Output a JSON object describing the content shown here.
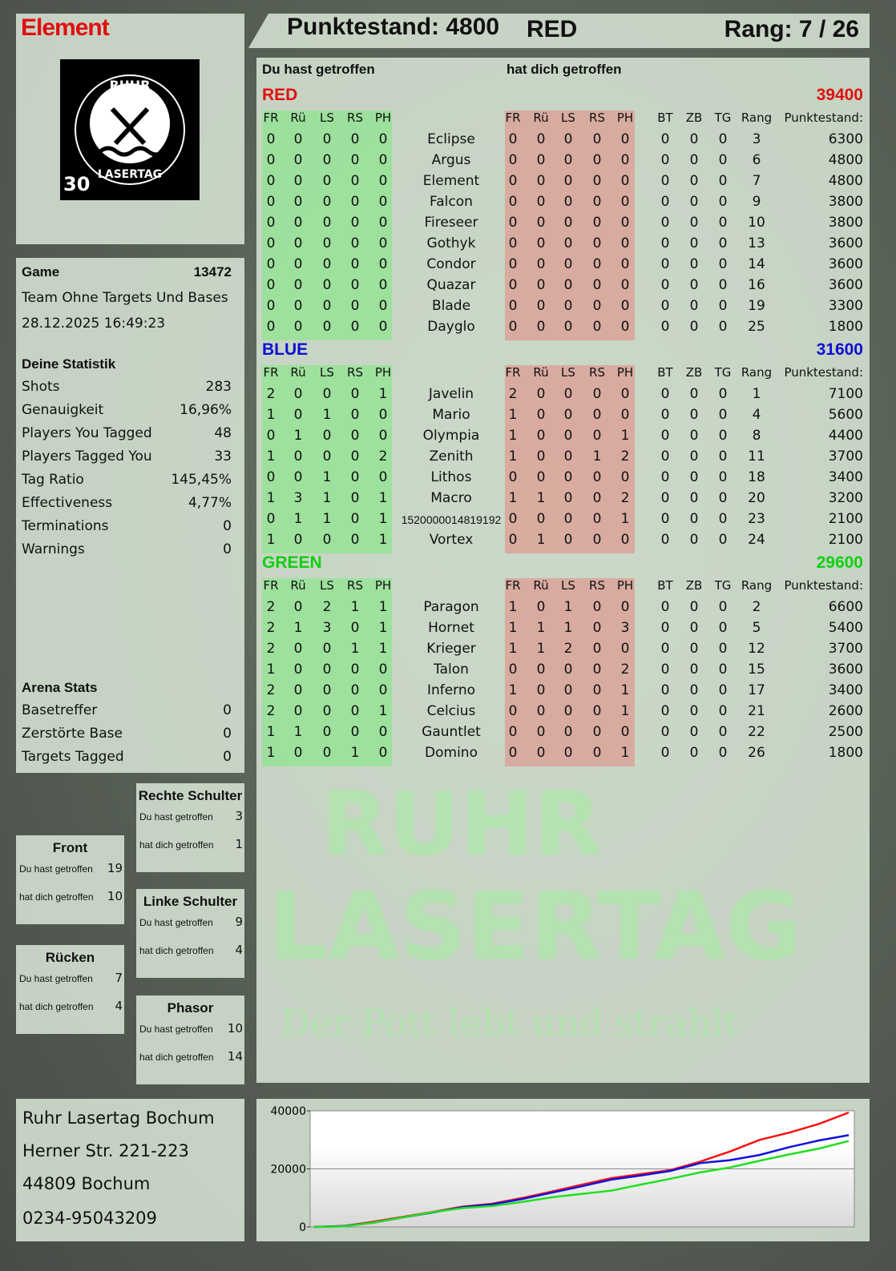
{
  "player": {
    "name": "Element",
    "score_label": "Punktestand: 4800",
    "team": "RED",
    "rank_label": "Rang: 7 / 26"
  },
  "logo": {
    "text_top": "RUHR",
    "text_bottom": "LASERTAG",
    "badge": "30"
  },
  "table": {
    "hit_label": "Du hast getroffen",
    "hit_by_label": "hat dich getroffen",
    "cols_hit": [
      "FR",
      "Rü",
      "LS",
      "RS",
      "PH"
    ],
    "cols_by": [
      "FR",
      "Rü",
      "LS",
      "RS",
      "PH"
    ],
    "cols_extra": [
      "BT",
      "ZB",
      "TG",
      "Rang",
      "Punktestand:"
    ],
    "teams": [
      {
        "name": "RED",
        "total": "39400",
        "color": "#e01010",
        "rows": [
          [
            "0",
            "0",
            "0",
            "0",
            "0",
            "Eclipse",
            "0",
            "0",
            "0",
            "0",
            "0",
            "0",
            "0",
            "0",
            "3",
            "6300"
          ],
          [
            "0",
            "0",
            "0",
            "0",
            "0",
            "Argus",
            "0",
            "0",
            "0",
            "0",
            "0",
            "0",
            "0",
            "0",
            "6",
            "4800"
          ],
          [
            "0",
            "0",
            "0",
            "0",
            "0",
            "Element",
            "0",
            "0",
            "0",
            "0",
            "0",
            "0",
            "0",
            "0",
            "7",
            "4800"
          ],
          [
            "0",
            "0",
            "0",
            "0",
            "0",
            "Falcon",
            "0",
            "0",
            "0",
            "0",
            "0",
            "0",
            "0",
            "0",
            "9",
            "3800"
          ],
          [
            "0",
            "0",
            "0",
            "0",
            "0",
            "Fireseer",
            "0",
            "0",
            "0",
            "0",
            "0",
            "0",
            "0",
            "0",
            "10",
            "3800"
          ],
          [
            "0",
            "0",
            "0",
            "0",
            "0",
            "Gothyk",
            "0",
            "0",
            "0",
            "0",
            "0",
            "0",
            "0",
            "0",
            "13",
            "3600"
          ],
          [
            "0",
            "0",
            "0",
            "0",
            "0",
            "Condor",
            "0",
            "0",
            "0",
            "0",
            "0",
            "0",
            "0",
            "0",
            "14",
            "3600"
          ],
          [
            "0",
            "0",
            "0",
            "0",
            "0",
            "Quazar",
            "0",
            "0",
            "0",
            "0",
            "0",
            "0",
            "0",
            "0",
            "16",
            "3600"
          ],
          [
            "0",
            "0",
            "0",
            "0",
            "0",
            "Blade",
            "0",
            "0",
            "0",
            "0",
            "0",
            "0",
            "0",
            "0",
            "19",
            "3300"
          ],
          [
            "0",
            "0",
            "0",
            "0",
            "0",
            "Dayglo",
            "0",
            "0",
            "0",
            "0",
            "0",
            "0",
            "0",
            "0",
            "25",
            "1800"
          ]
        ]
      },
      {
        "name": "BLUE",
        "total": "31600",
        "color": "#1010d0",
        "rows": [
          [
            "2",
            "0",
            "0",
            "0",
            "1",
            "Javelin",
            "2",
            "0",
            "0",
            "0",
            "0",
            "0",
            "0",
            "0",
            "1",
            "7100"
          ],
          [
            "1",
            "0",
            "1",
            "0",
            "0",
            "Mario",
            "1",
            "0",
            "0",
            "0",
            "0",
            "0",
            "0",
            "0",
            "4",
            "5600"
          ],
          [
            "0",
            "1",
            "0",
            "0",
            "0",
            "Olympia",
            "1",
            "0",
            "0",
            "0",
            "1",
            "0",
            "0",
            "0",
            "8",
            "4400"
          ],
          [
            "1",
            "0",
            "0",
            "0",
            "2",
            "Zenith",
            "1",
            "0",
            "0",
            "1",
            "2",
            "0",
            "0",
            "0",
            "11",
            "3700"
          ],
          [
            "0",
            "0",
            "1",
            "0",
            "0",
            "Lithos",
            "0",
            "0",
            "0",
            "0",
            "0",
            "0",
            "0",
            "0",
            "18",
            "3400"
          ],
          [
            "1",
            "3",
            "1",
            "0",
            "1",
            "Macro",
            "1",
            "1",
            "0",
            "0",
            "2",
            "0",
            "0",
            "0",
            "20",
            "3200"
          ],
          [
            "0",
            "1",
            "1",
            "0",
            "1",
            "1520000014819192",
            "0",
            "0",
            "0",
            "0",
            "1",
            "0",
            "0",
            "0",
            "23",
            "2100"
          ],
          [
            "1",
            "0",
            "0",
            "0",
            "1",
            "Vortex",
            "0",
            "1",
            "0",
            "0",
            "0",
            "0",
            "0",
            "0",
            "24",
            "2100"
          ]
        ]
      },
      {
        "name": "GREEN",
        "total": "29600",
        "color": "#10d010",
        "rows": [
          [
            "2",
            "0",
            "2",
            "1",
            "1",
            "Paragon",
            "1",
            "0",
            "1",
            "0",
            "0",
            "0",
            "0",
            "0",
            "2",
            "6600"
          ],
          [
            "2",
            "1",
            "3",
            "0",
            "1",
            "Hornet",
            "1",
            "1",
            "1",
            "0",
            "3",
            "0",
            "0",
            "0",
            "5",
            "5400"
          ],
          [
            "2",
            "0",
            "0",
            "1",
            "1",
            "Krieger",
            "1",
            "1",
            "2",
            "0",
            "0",
            "0",
            "0",
            "0",
            "12",
            "3700"
          ],
          [
            "1",
            "0",
            "0",
            "0",
            "0",
            "Talon",
            "0",
            "0",
            "0",
            "0",
            "2",
            "0",
            "0",
            "0",
            "15",
            "3600"
          ],
          [
            "2",
            "0",
            "0",
            "0",
            "0",
            "Inferno",
            "1",
            "0",
            "0",
            "0",
            "1",
            "0",
            "0",
            "0",
            "17",
            "3400"
          ],
          [
            "2",
            "0",
            "0",
            "0",
            "1",
            "Celcius",
            "0",
            "0",
            "0",
            "0",
            "1",
            "0",
            "0",
            "0",
            "21",
            "2600"
          ],
          [
            "1",
            "1",
            "0",
            "0",
            "0",
            "Gauntlet",
            "0",
            "0",
            "0",
            "0",
            "0",
            "0",
            "0",
            "0",
            "22",
            "2500"
          ],
          [
            "1",
            "0",
            "0",
            "1",
            "0",
            "Domino",
            "0",
            "0",
            "0",
            "0",
            "1",
            "0",
            "0",
            "0",
            "26",
            "1800"
          ]
        ]
      }
    ]
  },
  "game": {
    "label": "Game",
    "id": "13472",
    "mode": "Team Ohne Targets Und Bases",
    "date": "28.12.2025 16:49:23"
  },
  "stats": {
    "title": "Deine Statistik",
    "items": [
      [
        "Shots",
        "283"
      ],
      [
        "Genauigkeit",
        "16,96%"
      ],
      [
        "Players You Tagged",
        "48"
      ],
      [
        "Players Tagged You",
        "33"
      ],
      [
        "Tag Ratio",
        "145,45%"
      ],
      [
        "Effectiveness",
        "4,77%"
      ],
      [
        "Terminations",
        "0"
      ],
      [
        "Warnings",
        "0"
      ]
    ]
  },
  "arena": {
    "title": "Arena Stats",
    "items": [
      [
        "Basetreffer",
        "0"
      ],
      [
        "Zerstörte Base",
        "0"
      ],
      [
        "Targets Tagged",
        "0"
      ]
    ]
  },
  "hits": [
    {
      "title": "Rechte Schulter",
      "hit": "3",
      "by": "1"
    },
    {
      "title": "Front",
      "hit": "19",
      "by": "10"
    },
    {
      "title": "Linke Schulter",
      "hit": "9",
      "by": "4"
    },
    {
      "title": "Rücken",
      "hit": "7",
      "by": "4"
    },
    {
      "title": "Phasor",
      "hit": "10",
      "by": "14"
    }
  ],
  "hit_labels": {
    "hit": "Du hast getroffen",
    "by": "hat dich getroffen"
  },
  "address": [
    "Ruhr Lasertag Bochum",
    "Herner Str. 221-223",
    "44809 Bochum",
    "0234-95043209"
  ],
  "watermark": {
    "line1": "RUHR",
    "line2": "LASERTAG",
    "line3": "Der Pott lebt und strahlt"
  },
  "chart_data": {
    "type": "line",
    "ylim": [
      0,
      40000
    ],
    "yticks": [
      "0",
      "20000",
      "40000"
    ],
    "grid": true,
    "series": [
      {
        "color": "#ff1010",
        "values": [
          0,
          300,
          1800,
          3500,
          5200,
          7000,
          8000,
          10000,
          12200,
          14500,
          16800,
          18200,
          19600,
          22500,
          26000,
          30000,
          32500,
          35500,
          39400
        ]
      },
      {
        "color": "#1010e0",
        "values": [
          0,
          300,
          1500,
          3300,
          5000,
          6800,
          7800,
          9600,
          11800,
          14000,
          16300,
          17700,
          19300,
          22000,
          23000,
          24800,
          27500,
          29800,
          31600
        ]
      },
      {
        "color": "#20e020",
        "values": [
          0,
          200,
          1500,
          3300,
          5100,
          6500,
          7200,
          8600,
          10200,
          11400,
          12500,
          14600,
          16600,
          18800,
          20500,
          22800,
          25000,
          27000,
          29600
        ]
      }
    ]
  }
}
